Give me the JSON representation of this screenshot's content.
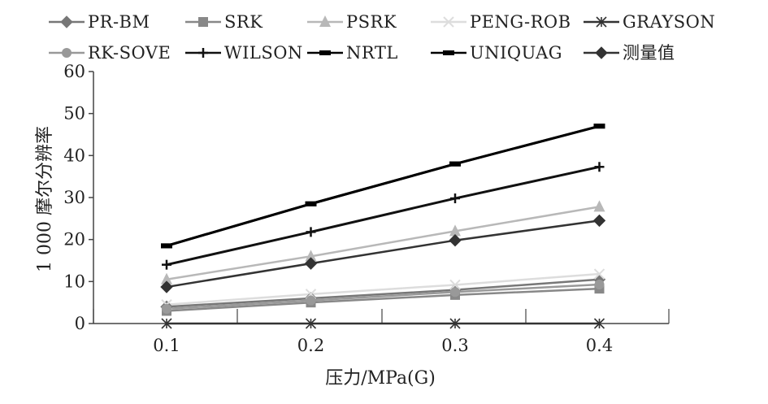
{
  "chart_data": {
    "type": "line",
    "xlabel": "压力/MPa(G)",
    "ylabel": "1 000 摩尔分辨率",
    "x": [
      0.1,
      0.2,
      0.3,
      0.4
    ],
    "x_tick_labels": [
      "0.1",
      "0.2",
      "0.3",
      "0.4"
    ],
    "ylim": [
      0,
      60
    ],
    "y_ticks": [
      0,
      10,
      20,
      30,
      40,
      50,
      60
    ],
    "y_tick_labels": [
      "0",
      "10",
      "20",
      "30",
      "40",
      "50",
      "60"
    ],
    "grid": false,
    "legend_position": "top",
    "series": [
      {
        "name": "PR-BM",
        "marker": "diamond",
        "color": "#777777",
        "values": [
          4.0,
          6.0,
          8.0,
          10.5
        ]
      },
      {
        "name": "SRK",
        "marker": "square",
        "color": "#888888",
        "values": [
          3.0,
          5.0,
          6.8,
          8.3
        ]
      },
      {
        "name": "PSRK",
        "marker": "triangle",
        "color": "#b8b8b8",
        "values": [
          10.5,
          16.0,
          22.0,
          27.8
        ]
      },
      {
        "name": "PENG-ROB",
        "marker": "x",
        "color": "#dddddd",
        "values": [
          4.5,
          7.0,
          9.2,
          11.8
        ]
      },
      {
        "name": "GRAYSON",
        "marker": "asterisk",
        "color": "#333333",
        "values": [
          0.0,
          0.0,
          0.0,
          0.0
        ]
      },
      {
        "name": "RK-SOVE",
        "marker": "circle",
        "color": "#999999",
        "values": [
          3.5,
          5.5,
          7.5,
          9.3
        ]
      },
      {
        "name": "WILSON",
        "marker": "plus",
        "color": "#111111",
        "values": [
          14.0,
          21.8,
          29.8,
          37.3
        ]
      },
      {
        "name": "NRTL",
        "marker": "dash",
        "color": "#000000",
        "values": [
          18.5,
          28.5,
          38.0,
          47.0
        ]
      },
      {
        "name": "UNIQUAG",
        "marker": "dash",
        "color": "#000000",
        "values": [
          18.5,
          28.5,
          38.0,
          47.0
        ]
      },
      {
        "name": "测量值",
        "marker": "diamond",
        "color": "#333333",
        "values": [
          8.7,
          14.3,
          19.8,
          24.5
        ]
      }
    ]
  }
}
